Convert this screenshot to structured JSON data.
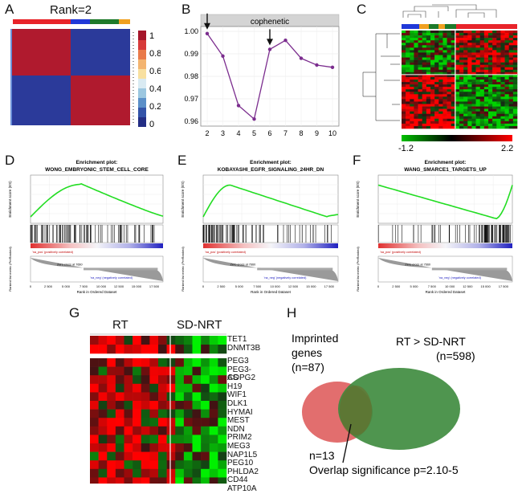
{
  "panels": {
    "A": {
      "label": "A",
      "title": "Rank=2",
      "colorbar_ticks": [
        "1",
        "0.8",
        "0.6",
        "0.4",
        "0.2",
        "0"
      ],
      "colors": {
        "high": "#b01a2e",
        "low": "#2b3a9a"
      }
    },
    "B": {
      "label": "B",
      "title": "cophenetic",
      "chart_data": {
        "type": "line",
        "title": "cophenetic",
        "x": [
          2,
          3,
          4,
          5,
          6,
          7,
          8,
          9,
          10
        ],
        "y": [
          0.999,
          0.989,
          0.967,
          0.961,
          0.992,
          0.996,
          0.988,
          0.985,
          0.984
        ],
        "xlim": [
          2,
          10
        ],
        "ylim": [
          0.96,
          1.0
        ],
        "yticks": [
          "1.00",
          "0.99",
          "0.98",
          "0.97",
          "0.96"
        ],
        "xticks": [
          "2",
          "3",
          "4",
          "5",
          "6",
          "7",
          "8",
          "9",
          "10"
        ],
        "arrows_at": [
          2,
          6
        ],
        "color": "#7b2d8e"
      }
    },
    "C": {
      "label": "C",
      "scale_min": "-1.2",
      "scale_max": "2.2"
    },
    "D": {
      "label": "D",
      "title": "Enrichment plot:",
      "subtitle": "WONG_EMBRYONIC_STEM_CELL_CORE",
      "pos_label": "'na_pos' (positively correlated)",
      "neg_label": "'na_neg' (negatively correlated)",
      "zero_label": "Zero cross at 7660",
      "xlabel": "Rank in Ordered Dataset",
      "es_label": "Enrichment score (ES)",
      "rank_label": "Ranked list metric (PreRanked)",
      "xticks": [
        "0",
        "2 500",
        "5 000",
        "7 500",
        "10 000",
        "12 500",
        "15 000",
        "17 500"
      ]
    },
    "E": {
      "label": "E",
      "title": "Enrichment plot:",
      "subtitle": "KOBAYASHI_EGFR_SIGNALING_24HR_DN",
      "pos_label": "'na_pos' (positively correlated)",
      "neg_label": "'na_neg' (negatively correlated)",
      "zero_label": "Zero cross at 7660",
      "xlabel": "Rank in Ordered Dataset",
      "es_label": "Enrichment score (ES)",
      "rank_label": "Ranked list metric (PreRanked)",
      "xticks": [
        "0",
        "2 500",
        "5 000",
        "7 500",
        "10 000",
        "12 500",
        "15 000",
        "17 500"
      ]
    },
    "F": {
      "label": "F",
      "title": "Enrichment plot:",
      "subtitle": "WANG_SMARCE1_TARGETS_UP",
      "pos_label": "'na_pos' (positively correlated)",
      "neg_label": "'na_neg' (negatively correlated)",
      "zero_label": "Zero cross at 7660",
      "xlabel": "Rank in Ordered Dataset",
      "es_label": "Enrichment score (ES)",
      "rank_label": "Ranked list metric (PreRanked)",
      "xticks": [
        "0",
        "2 500",
        "5 000",
        "7 500",
        "10 000",
        "12 500",
        "15 000",
        "17 500"
      ]
    },
    "G": {
      "label": "G",
      "group_rt": "RT",
      "group_sd": "SD-NRT",
      "genes_top": [
        "TET1",
        "DNMT3B"
      ],
      "genes_bottom": [
        "PEG3",
        "PEG3-AS",
        "COPG2",
        "H19",
        "WIF1",
        "DLK1",
        "HYMAI",
        "MEST",
        "NDN",
        "PRIM2",
        "MEG3",
        "NAP1L5",
        "PEG10",
        "PHLDA2",
        "CD44",
        "ATP10A"
      ]
    },
    "H": {
      "label": "H",
      "left_set": [
        "Imprinted",
        "genes",
        "(n=87)"
      ],
      "right_set": [
        "RT > SD-NRT",
        "(n=598)"
      ],
      "overlap": "n=13",
      "significance": "Overlap significance p=2.10-5",
      "colors": {
        "left": "#e06666",
        "right": "#3c8a3c"
      }
    }
  }
}
